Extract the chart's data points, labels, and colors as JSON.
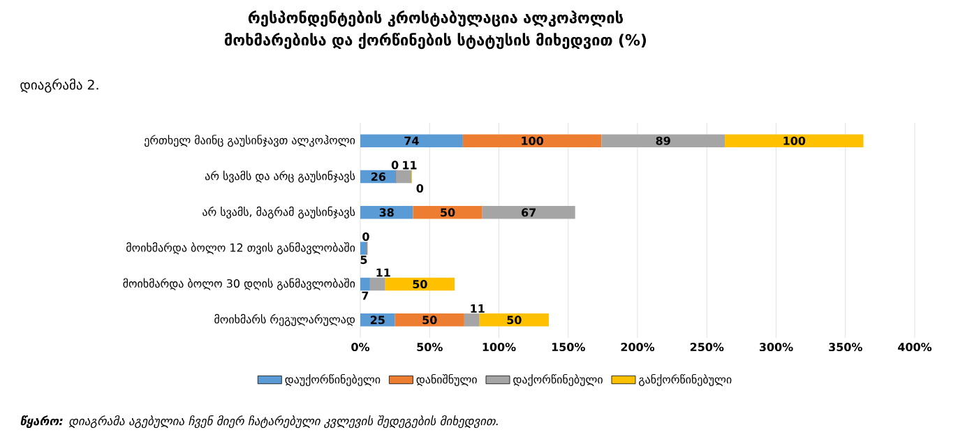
{
  "chart_data": {
    "type": "bar",
    "orientation": "horizontal",
    "stacked": true,
    "title": "**რესპონდენტების კროსტაბულაცია ალკოჰოლის მოხმარებისა და ქორწინების სტატუსის მიხედვით (%)**",
    "subtitle": "დიაგრამა 2.",
    "categories": [
      "ერთხელ მაინც გაუსინჯავთ ალკოჰოლი",
      "არ სვამს და არც გაუსინჯავს",
      "არ სვამს, მაგრამ გაუსინჯავს",
      "მოიხმარდა ბოლო 12 თვის განმავლობაში",
      "მოიხმარდა ბოლო 30 დღის განმავლობაში",
      "მოიხმარს რეგულარულად"
    ],
    "series": [
      {
        "name": "დაუქორწინებელი",
        "color": "#5b9bd5",
        "values": [
          74,
          26,
          38,
          5,
          7,
          25
        ]
      },
      {
        "name": "დანიშნული",
        "color": "#ed7d31",
        "values": [
          100,
          0,
          50,
          0,
          null,
          50
        ]
      },
      {
        "name": "დაქორწინებული",
        "color": "#a5a5a5",
        "values": [
          89,
          11,
          67,
          null,
          11,
          11
        ]
      },
      {
        "name": "განქორწინებული",
        "color": "#ffc000",
        "values": [
          100,
          0,
          null,
          null,
          50,
          50
        ]
      }
    ],
    "xlim": [
      0,
      400
    ],
    "xticks": [
      {
        "value": 0,
        "label": "0%"
      },
      {
        "value": 50,
        "label": "50%"
      },
      {
        "value": 100,
        "label": "100%"
      },
      {
        "value": 150,
        "label": "150%"
      },
      {
        "value": 200,
        "label": "200%"
      },
      {
        "value": 250,
        "label": "250%"
      },
      {
        "value": 300,
        "label": "300%"
      },
      {
        "value": 350,
        "label": "350%"
      },
      {
        "value": 400,
        "label": "400%"
      }
    ],
    "grid": "x",
    "legend": "bottom",
    "data_labels": true,
    "annotations": [
      "**წყარო:** დიაგრამა აგებულია ჩვენ მიერ ჩატარებული კვლევის შედეგების მიხედვით."
    ]
  }
}
